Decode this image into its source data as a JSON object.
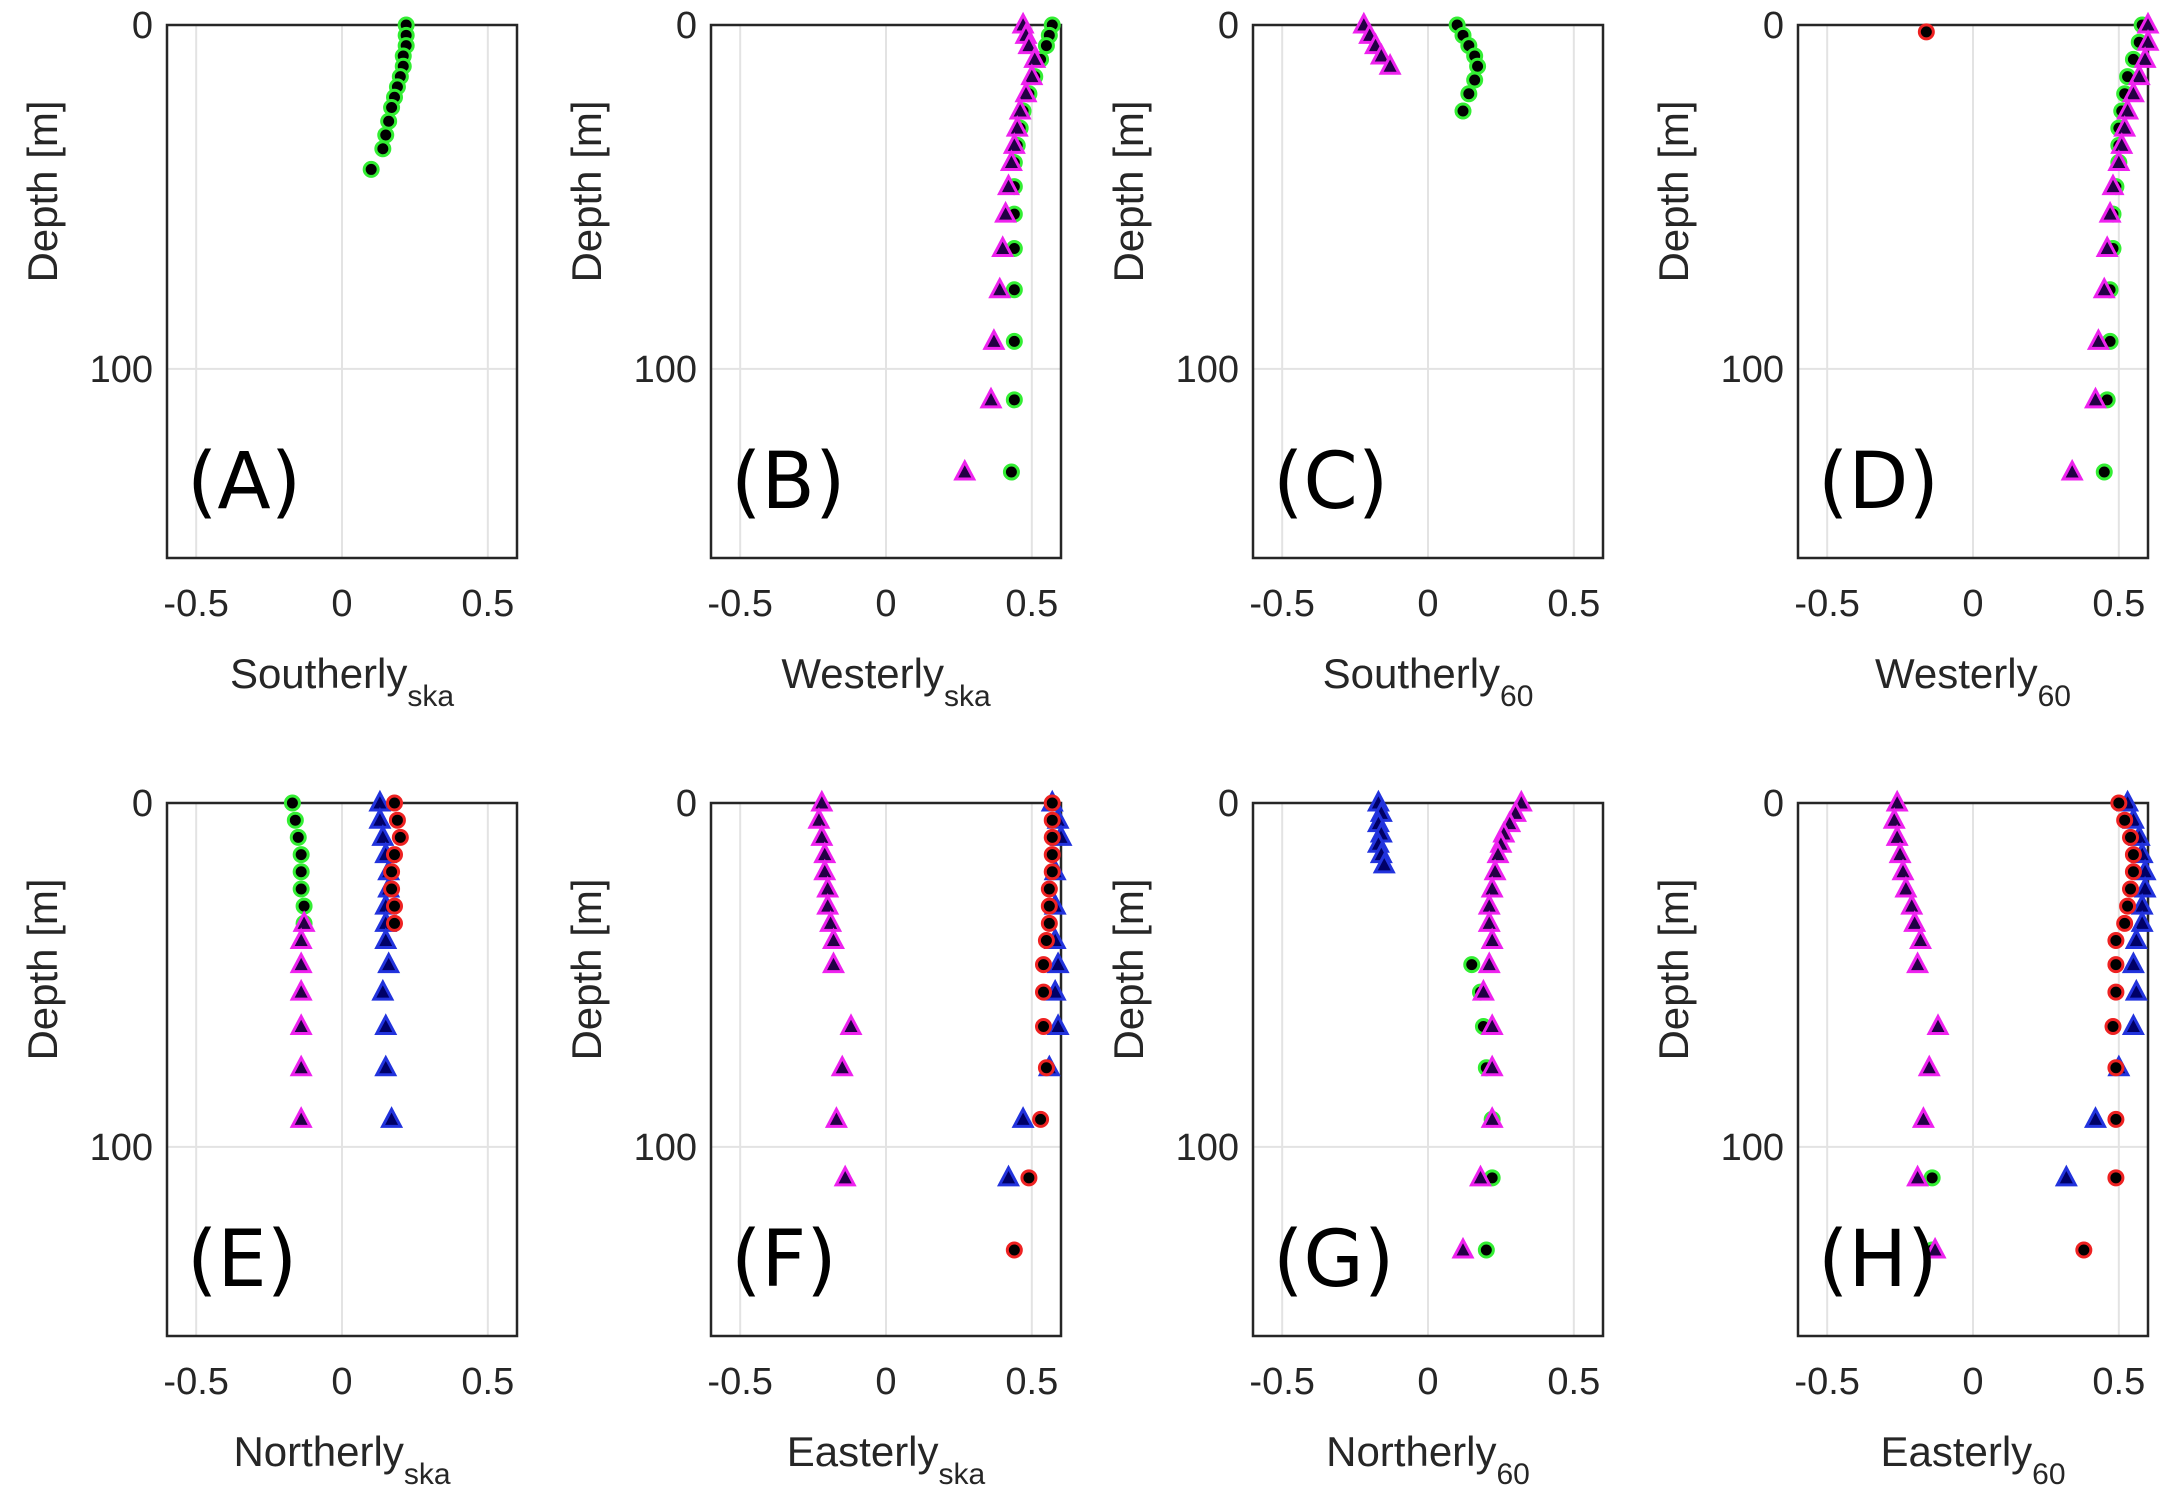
{
  "chart_data": {
    "type": "scatter",
    "xlim": [
      -0.6,
      0.6
    ],
    "ylim": [
      0,
      155
    ],
    "ylim_reversed": true,
    "xticks": [
      "-0.5",
      "0",
      "0.5"
    ],
    "yticks": [
      "0",
      "100"
    ],
    "xtick_values": [
      -0.5,
      0,
      0.5
    ],
    "ytick_values": [
      0,
      100
    ],
    "ylabel": "Depth [m]",
    "grid": true,
    "styles": {
      "green": {
        "marker": "circle",
        "fill": "#000000",
        "edge": "#33ee33"
      },
      "red": {
        "marker": "circle",
        "fill": "#000000",
        "edge": "#ee2222"
      },
      "magenta": {
        "marker": "triangle",
        "fill": "#220044",
        "edge": "#ee22ee"
      },
      "blue": {
        "marker": "triangle",
        "fill": "#000066",
        "edge": "#2233dd"
      }
    },
    "panels": [
      {
        "label": "(A)",
        "xlabel": "Southerly",
        "xlabel_sub": "ska",
        "series": [
          {
            "style": "green",
            "depth": [
              0,
              3,
              6,
              9,
              12,
              15,
              18,
              21,
              24,
              28,
              32,
              36,
              42
            ],
            "values": [
              0.22,
              0.22,
              0.22,
              0.21,
              0.21,
              0.2,
              0.19,
              0.18,
              0.17,
              0.16,
              0.15,
              0.14,
              0.1
            ]
          }
        ]
      },
      {
        "label": "(B)",
        "xlabel": "Westerly",
        "xlabel_sub": "ska",
        "series": [
          {
            "style": "green",
            "depth": [
              0,
              3,
              6,
              10,
              15,
              20,
              25,
              30,
              35,
              40,
              47,
              55,
              65,
              77,
              92,
              109,
              130
            ],
            "values": [
              0.57,
              0.56,
              0.55,
              0.53,
              0.51,
              0.49,
              0.47,
              0.46,
              0.45,
              0.44,
              0.44,
              0.44,
              0.44,
              0.44,
              0.44,
              0.44,
              0.43
            ]
          },
          {
            "style": "magenta",
            "depth": [
              0,
              3,
              6,
              10,
              15,
              20,
              25,
              30,
              35,
              40,
              47,
              55,
              65,
              77,
              92,
              109,
              130
            ],
            "values": [
              0.47,
              0.48,
              0.49,
              0.51,
              0.5,
              0.48,
              0.46,
              0.45,
              0.44,
              0.43,
              0.42,
              0.41,
              0.4,
              0.39,
              0.37,
              0.36,
              0.27
            ]
          }
        ]
      },
      {
        "label": "(C)",
        "xlabel": "Southerly",
        "xlabel_sub": "60",
        "series": [
          {
            "style": "magenta",
            "depth": [
              0,
              3,
              6,
              9,
              12
            ],
            "values": [
              -0.22,
              -0.2,
              -0.18,
              -0.16,
              -0.13
            ]
          },
          {
            "style": "green",
            "depth": [
              0,
              3,
              6,
              9,
              12,
              16,
              20,
              25
            ],
            "values": [
              0.1,
              0.12,
              0.14,
              0.16,
              0.17,
              0.16,
              0.14,
              0.12
            ]
          }
        ]
      },
      {
        "label": "(D)",
        "xlabel": "Westerly",
        "xlabel_sub": "60",
        "series": [
          {
            "style": "red",
            "depth": [
              2
            ],
            "values": [
              -0.16
            ]
          },
          {
            "style": "green",
            "depth": [
              0,
              5,
              10,
              15,
              20,
              25,
              30,
              35,
              40,
              47,
              55,
              65,
              77,
              92,
              109,
              130
            ],
            "values": [
              0.58,
              0.57,
              0.55,
              0.53,
              0.52,
              0.51,
              0.5,
              0.5,
              0.5,
              0.49,
              0.48,
              0.48,
              0.47,
              0.47,
              0.46,
              0.45
            ]
          },
          {
            "style": "magenta",
            "depth": [
              0,
              5,
              10,
              15,
              20,
              25,
              30,
              35,
              40,
              47,
              55,
              65,
              77,
              92,
              109,
              130
            ],
            "values": [
              0.6,
              0.6,
              0.59,
              0.57,
              0.55,
              0.53,
              0.52,
              0.51,
              0.5,
              0.48,
              0.47,
              0.46,
              0.45,
              0.43,
              0.42,
              0.34
            ]
          }
        ]
      },
      {
        "label": "(E)",
        "xlabel": "Northerly",
        "xlabel_sub": "ska",
        "series": [
          {
            "style": "green",
            "depth": [
              0,
              5,
              10,
              15,
              20,
              25,
              30,
              35
            ],
            "values": [
              -0.17,
              -0.16,
              -0.15,
              -0.14,
              -0.14,
              -0.14,
              -0.13,
              -0.13
            ]
          },
          {
            "style": "magenta",
            "depth": [
              35,
              40,
              47,
              55,
              65,
              77,
              92
            ],
            "values": [
              -0.13,
              -0.14,
              -0.14,
              -0.14,
              -0.14,
              -0.14,
              -0.14
            ]
          },
          {
            "style": "blue",
            "depth": [
              0,
              5,
              10,
              15,
              20,
              25,
              30,
              35,
              40,
              47,
              55,
              65,
              77,
              92
            ],
            "values": [
              0.13,
              0.13,
              0.14,
              0.15,
              0.16,
              0.16,
              0.15,
              0.15,
              0.15,
              0.16,
              0.14,
              0.15,
              0.15,
              0.17
            ]
          },
          {
            "style": "red",
            "depth": [
              0,
              5,
              10,
              15,
              20,
              25,
              30,
              35
            ],
            "values": [
              0.18,
              0.19,
              0.2,
              0.18,
              0.17,
              0.17,
              0.18,
              0.18
            ]
          }
        ]
      },
      {
        "label": "(F)",
        "xlabel": "Easterly",
        "xlabel_sub": "ska",
        "series": [
          {
            "style": "magenta",
            "depth": [
              0,
              5,
              10,
              15,
              20,
              25,
              30,
              35,
              40,
              47,
              65,
              77,
              92,
              109
            ],
            "values": [
              -0.22,
              -0.23,
              -0.22,
              -0.21,
              -0.21,
              -0.2,
              -0.2,
              -0.19,
              -0.18,
              -0.18,
              -0.12,
              -0.15,
              -0.17,
              -0.14
            ]
          },
          {
            "style": "blue",
            "depth": [
              0,
              5,
              10,
              20,
              30,
              40,
              47,
              55,
              65,
              77,
              92,
              109
            ],
            "values": [
              0.57,
              0.59,
              0.6,
              0.58,
              0.58,
              0.58,
              0.59,
              0.58,
              0.59,
              0.56,
              0.47,
              0.42
            ]
          },
          {
            "style": "red",
            "depth": [
              0,
              5,
              10,
              15,
              20,
              25,
              30,
              35,
              40,
              47,
              55,
              65,
              77,
              92,
              109,
              130
            ],
            "values": [
              0.57,
              0.57,
              0.57,
              0.57,
              0.57,
              0.56,
              0.56,
              0.56,
              0.55,
              0.54,
              0.54,
              0.54,
              0.55,
              0.53,
              0.49,
              0.44
            ]
          }
        ]
      },
      {
        "label": "(G)",
        "xlabel": "Northerly",
        "xlabel_sub": "60",
        "series": [
          {
            "style": "blue",
            "depth": [
              0,
              3,
              6,
              9,
              12,
              15,
              18
            ],
            "values": [
              -0.17,
              -0.16,
              -0.17,
              -0.16,
              -0.17,
              -0.16,
              -0.15
            ]
          },
          {
            "style": "green",
            "depth": [
              47,
              55,
              65,
              77,
              92,
              109,
              130
            ],
            "values": [
              0.15,
              0.18,
              0.19,
              0.2,
              0.22,
              0.22,
              0.2
            ]
          },
          {
            "style": "magenta",
            "depth": [
              0,
              3,
              6,
              9,
              12,
              15,
              20,
              25,
              30,
              35,
              40,
              47,
              55,
              65,
              77,
              92,
              109,
              130
            ],
            "values": [
              0.32,
              0.3,
              0.28,
              0.26,
              0.25,
              0.24,
              0.23,
              0.22,
              0.21,
              0.21,
              0.22,
              0.21,
              0.19,
              0.22,
              0.22,
              0.22,
              0.18,
              0.12
            ]
          }
        ]
      },
      {
        "label": "(H)",
        "xlabel": "Easterly",
        "xlabel_sub": "60",
        "series": [
          {
            "style": "green",
            "depth": [
              109,
              130
            ],
            "values": [
              -0.14,
              -0.14
            ]
          },
          {
            "style": "magenta",
            "depth": [
              0,
              5,
              10,
              15,
              20,
              25,
              30,
              35,
              40,
              47,
              65,
              77,
              92,
              109,
              130
            ],
            "values": [
              -0.26,
              -0.27,
              -0.26,
              -0.25,
              -0.24,
              -0.23,
              -0.21,
              -0.2,
              -0.18,
              -0.19,
              -0.12,
              -0.15,
              -0.17,
              -0.19,
              -0.13
            ]
          },
          {
            "style": "blue",
            "depth": [
              0,
              5,
              10,
              15,
              20,
              25,
              30,
              35,
              40,
              47,
              55,
              65,
              77,
              92,
              109
            ],
            "values": [
              0.53,
              0.55,
              0.57,
              0.58,
              0.59,
              0.59,
              0.58,
              0.58,
              0.56,
              0.55,
              0.56,
              0.55,
              0.5,
              0.42,
              0.32
            ]
          },
          {
            "style": "red",
            "depth": [
              0,
              5,
              10,
              15,
              20,
              25,
              30,
              35,
              40,
              47,
              55,
              65,
              77,
              92,
              109,
              130
            ],
            "values": [
              0.5,
              0.52,
              0.54,
              0.55,
              0.55,
              0.54,
              0.53,
              0.52,
              0.49,
              0.49,
              0.49,
              0.48,
              0.49,
              0.49,
              0.49,
              0.38
            ]
          }
        ]
      }
    ]
  }
}
